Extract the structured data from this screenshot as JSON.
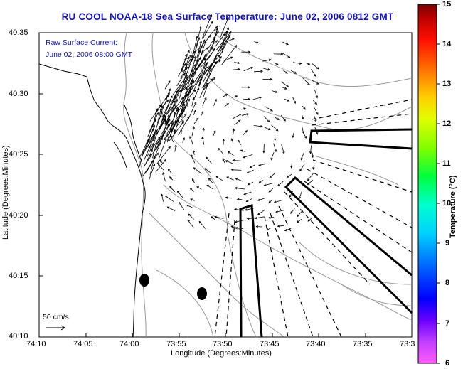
{
  "title": "RU COOL  NOAA-18  Sea Surface Temperature:  June 02, 2006 0812 GMT",
  "axes": {
    "xlabel": "Longitude (Degrees:Minutes)",
    "ylabel": "Latitude (Degrees:Minutes)",
    "x_ticks": [
      "74:10",
      "74:05",
      "74:00",
      "73:55",
      "73:50",
      "73:45",
      "73:40",
      "73:35",
      "73:3"
    ],
    "y_ticks": [
      "40:35",
      "40:30",
      "40:25",
      "40:20",
      "40:15",
      "40:10"
    ]
  },
  "annotation": {
    "line1": "Raw Surface Current:",
    "line2": "June 02, 2006 08:00 GMT"
  },
  "scale_label": "50 cm/s",
  "colorbar": {
    "label": "Temperature (°C)",
    "ticks": [
      "15",
      "14",
      "13",
      "12",
      "11",
      "10",
      "9",
      "8",
      "7",
      "6"
    ],
    "range": [
      6,
      15
    ],
    "colors": [
      "#ff00ff",
      "#7a00ff",
      "#0000ff",
      "#0090ff",
      "#00ffff",
      "#00ff60",
      "#90ff00",
      "#ffff00",
      "#ff9000",
      "#ff2000",
      "#c00000",
      "#800000"
    ]
  }
}
